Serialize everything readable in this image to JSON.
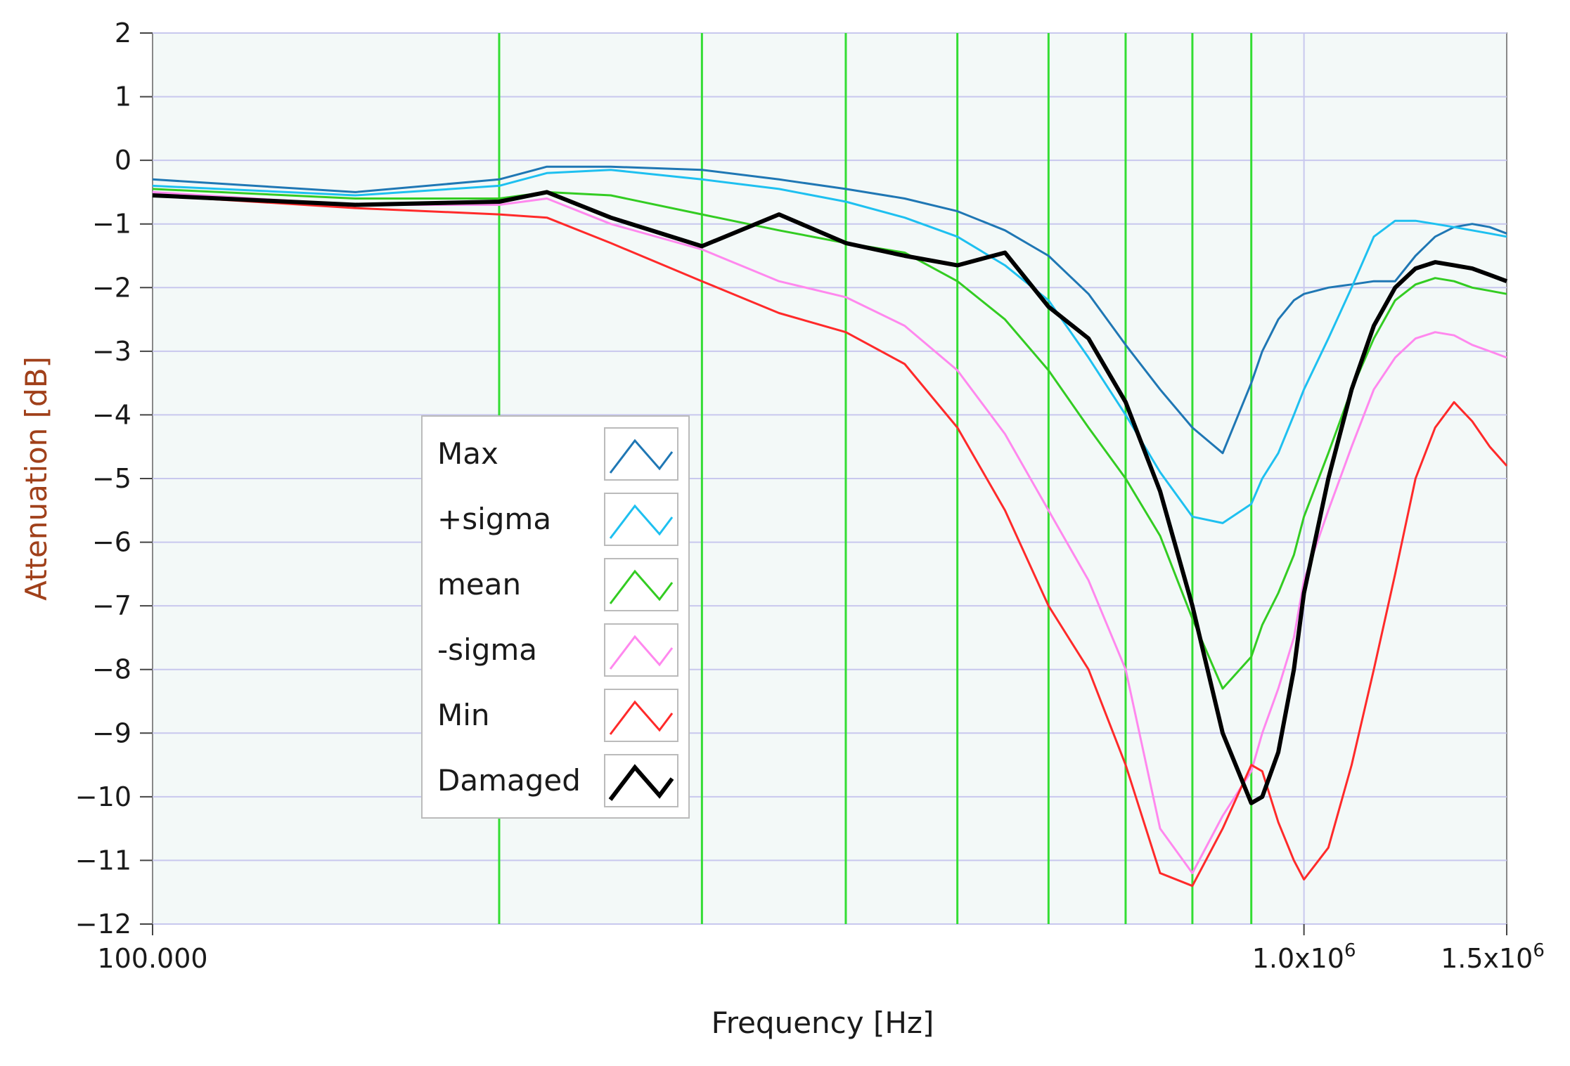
{
  "chart_data": {
    "type": "line",
    "xlabel": "Frequency [Hz]",
    "ylabel": "Attenuation [dB]",
    "x_scale": "log",
    "xlim": [
      100000,
      1500000
    ],
    "ylim": [
      -12,
      2
    ],
    "y_ticks": [
      2,
      1,
      0,
      -1,
      -2,
      -3,
      -4,
      -5,
      -6,
      -7,
      -8,
      -9,
      -10,
      -11,
      -12
    ],
    "x_tick_labels": [
      {
        "value": 100000,
        "label": "100.000"
      },
      {
        "value": 1000000,
        "label": "1.0x10^6",
        "mantissa": "1.0x10",
        "exponent": "6"
      },
      {
        "value": 1500000,
        "label": "1.5x10^6",
        "mantissa": "1.5x10",
        "exponent": "6"
      }
    ],
    "grid": true,
    "markers": [
      200000,
      300000,
      400000,
      500000,
      600000,
      700000,
      800000,
      900000
    ],
    "legend_position": "center-left",
    "colors": {
      "plot_bg": "#f3f9f8",
      "grid": "#c8c8ee",
      "markers": "#33dd33",
      "Max": "#1f77b4",
      "+sigma": "#1ec0f0",
      "mean": "#33cc22",
      "-sigma": "#ff88ee",
      "Min": "#ff2a2a",
      "Damaged": "#000000"
    },
    "x": [
      100000,
      150000,
      200000,
      220000,
      250000,
      300000,
      350000,
      400000,
      450000,
      500000,
      550000,
      600000,
      650000,
      700000,
      750000,
      800000,
      850000,
      900000,
      920000,
      950000,
      980000,
      1000000,
      1050000,
      1100000,
      1150000,
      1200000,
      1250000,
      1300000,
      1350000,
      1400000,
      1450000,
      1500000
    ],
    "series": [
      {
        "name": "Max",
        "values": [
          -0.3,
          -0.5,
          -0.3,
          -0.1,
          -0.1,
          -0.15,
          -0.3,
          -0.45,
          -0.6,
          -0.8,
          -1.1,
          -1.5,
          -2.1,
          -2.9,
          -3.6,
          -4.2,
          -4.6,
          -3.5,
          -3.0,
          -2.5,
          -2.2,
          -2.1,
          -2.0,
          -1.95,
          -1.9,
          -1.9,
          -1.5,
          -1.2,
          -1.05,
          -1.0,
          -1.05,
          -1.15
        ]
      },
      {
        "name": "+sigma",
        "values": [
          -0.4,
          -0.55,
          -0.4,
          -0.2,
          -0.15,
          -0.3,
          -0.45,
          -0.65,
          -0.9,
          -1.2,
          -1.65,
          -2.2,
          -3.1,
          -4.0,
          -4.9,
          -5.6,
          -5.7,
          -5.4,
          -5.0,
          -4.6,
          -4.0,
          -3.6,
          -2.8,
          -2.0,
          -1.2,
          -0.95,
          -0.95,
          -1.0,
          -1.05,
          -1.1,
          -1.15,
          -1.2
        ]
      },
      {
        "name": "mean",
        "values": [
          -0.45,
          -0.6,
          -0.6,
          -0.5,
          -0.55,
          -0.85,
          -1.1,
          -1.3,
          -1.45,
          -1.9,
          -2.5,
          -3.3,
          -4.2,
          -5.0,
          -5.9,
          -7.2,
          -8.3,
          -7.8,
          -7.3,
          -6.8,
          -6.2,
          -5.6,
          -4.6,
          -3.6,
          -2.8,
          -2.2,
          -1.95,
          -1.85,
          -1.9,
          -2.0,
          -2.05,
          -2.1
        ]
      },
      {
        "name": "-sigma",
        "values": [
          -0.5,
          -0.7,
          -0.7,
          -0.6,
          -1.0,
          -1.4,
          -1.9,
          -2.15,
          -2.6,
          -3.3,
          -4.3,
          -5.5,
          -6.6,
          -8.0,
          -10.5,
          -11.2,
          -10.3,
          -9.6,
          -9.0,
          -8.3,
          -7.5,
          -6.6,
          -5.5,
          -4.5,
          -3.6,
          -3.1,
          -2.8,
          -2.7,
          -2.75,
          -2.9,
          -3.0,
          -3.1
        ]
      },
      {
        "name": "Min",
        "values": [
          -0.55,
          -0.75,
          -0.85,
          -0.9,
          -1.3,
          -1.9,
          -2.4,
          -2.7,
          -3.2,
          -4.2,
          -5.5,
          -7.0,
          -8.0,
          -9.5,
          -11.2,
          -11.4,
          -10.5,
          -9.5,
          -9.6,
          -10.4,
          -11.0,
          -11.3,
          -10.8,
          -9.5,
          -8.0,
          -6.5,
          -5.0,
          -4.2,
          -3.8,
          -4.1,
          -4.5,
          -4.8
        ]
      },
      {
        "name": "Damaged",
        "values": [
          -0.55,
          -0.7,
          -0.65,
          -0.5,
          -0.9,
          -1.35,
          -0.85,
          -1.3,
          -1.5,
          -1.65,
          -1.45,
          -2.3,
          -2.8,
          -3.8,
          -5.2,
          -7.0,
          -9.0,
          -10.1,
          -10.0,
          -9.3,
          -8.0,
          -6.8,
          -5.0,
          -3.6,
          -2.6,
          -2.0,
          -1.7,
          -1.6,
          -1.65,
          -1.7,
          -1.8,
          -1.9
        ]
      }
    ]
  }
}
